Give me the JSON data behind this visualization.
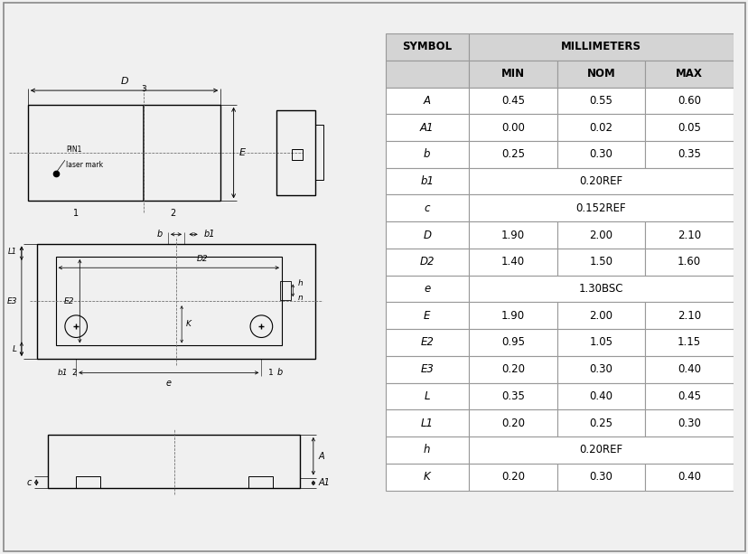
{
  "bg_color": "#f0f0f0",
  "border_color": "#aaaaaa",
  "table": {
    "rows": [
      [
        "A",
        "0.45",
        "0.55",
        "0.60"
      ],
      [
        "A1",
        "0.00",
        "0.02",
        "0.05"
      ],
      [
        "b",
        "0.25",
        "0.30",
        "0.35"
      ],
      [
        "b1",
        "",
        "0.20REF",
        ""
      ],
      [
        "c",
        "",
        "0.152REF",
        ""
      ],
      [
        "D",
        "1.90",
        "2.00",
        "2.10"
      ],
      [
        "D2",
        "1.40",
        "1.50",
        "1.60"
      ],
      [
        "e",
        "",
        "1.30BSC",
        ""
      ],
      [
        "E",
        "1.90",
        "2.00",
        "2.10"
      ],
      [
        "E2",
        "0.95",
        "1.05",
        "1.15"
      ],
      [
        "E3",
        "0.20",
        "0.30",
        "0.40"
      ],
      [
        "L",
        "0.35",
        "0.40",
        "0.45"
      ],
      [
        "L1",
        "0.20",
        "0.25",
        "0.30"
      ],
      [
        "h",
        "",
        "0.20REF",
        ""
      ],
      [
        "K",
        "0.20",
        "0.30",
        "0.40"
      ]
    ],
    "header_bg": "#d4d4d4",
    "white": "#ffffff",
    "border_color": "#999999",
    "text_color": "#000000"
  }
}
